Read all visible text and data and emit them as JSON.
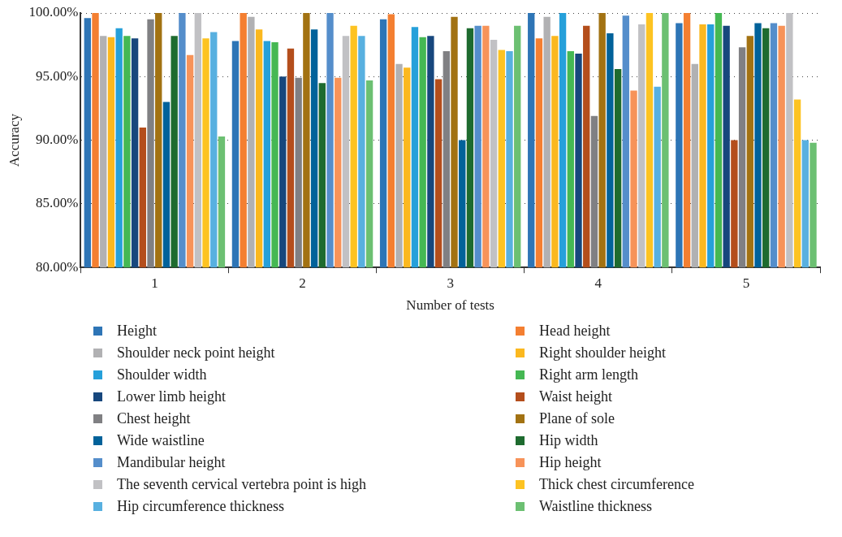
{
  "chart_data": {
    "type": "bar",
    "xlabel": "Number of tests",
    "ylabel": "Accuracy",
    "categories": [
      "1",
      "2",
      "3",
      "4",
      "5"
    ],
    "ylim": [
      80,
      100
    ],
    "yticks": [
      {
        "value": 80,
        "label": "80.00%"
      },
      {
        "value": 85,
        "label": "85.00%"
      },
      {
        "value": 90,
        "label": "90.00%"
      },
      {
        "value": 95,
        "label": "95.00%"
      },
      {
        "value": 100,
        "label": "100.00%"
      }
    ],
    "grid": "y",
    "legend": "bottom",
    "series": [
      {
        "name": "Height",
        "color": "#2e75b6",
        "values": [
          99.6,
          97.8,
          99.5,
          100,
          99.2
        ]
      },
      {
        "name": "Head height",
        "color": "#f47f31",
        "values": [
          100,
          100,
          99.9,
          98.0,
          100
        ]
      },
      {
        "name": "Shoulder neck point height",
        "color": "#b1b1b3",
        "values": [
          98.2,
          99.7,
          96.0,
          99.7,
          96.0
        ]
      },
      {
        "name": "Right shoulder height",
        "color": "#fbb81f",
        "values": [
          98.1,
          98.7,
          95.7,
          98.2,
          99.1
        ]
      },
      {
        "name": "Shoulder width",
        "color": "#26a0da",
        "values": [
          98.8,
          97.8,
          98.9,
          100,
          99.1
        ]
      },
      {
        "name": "Right arm length",
        "color": "#45b853",
        "values": [
          98.2,
          97.7,
          98.1,
          97.0,
          100
        ]
      },
      {
        "name": "Lower limb height",
        "color": "#17477d",
        "values": [
          98.0,
          95.0,
          98.2,
          96.8,
          99.0
        ]
      },
      {
        "name": "Waist height",
        "color": "#b44e1c",
        "values": [
          91.0,
          97.2,
          94.8,
          99.0,
          90.0
        ]
      },
      {
        "name": "Chest height",
        "color": "#808083",
        "values": [
          99.5,
          94.9,
          97.0,
          91.9,
          97.3
        ]
      },
      {
        "name": "Plane of sole",
        "color": "#a27212",
        "values": [
          100,
          100,
          99.7,
          100,
          98.2
        ]
      },
      {
        "name": "Wide waistline",
        "color": "#02629a",
        "values": [
          93.0,
          98.7,
          90.0,
          98.4,
          99.2
        ]
      },
      {
        "name": "Hip width",
        "color": "#1e6b2f",
        "values": [
          98.2,
          94.5,
          98.8,
          95.6,
          98.8
        ]
      },
      {
        "name": "Mandibular height",
        "color": "#558ecb",
        "values": [
          100,
          100,
          99.0,
          99.8,
          99.2
        ]
      },
      {
        "name": "Hip height",
        "color": "#f79359",
        "values": [
          96.7,
          94.9,
          99.0,
          93.9,
          99.0
        ]
      },
      {
        "name": "The seventh cervical vertebra point is high",
        "color": "#c1c1c4",
        "values": [
          100,
          98.2,
          97.9,
          99.1,
          100
        ]
      },
      {
        "name": "Thick chest circumference",
        "color": "#fdc322",
        "values": [
          98.0,
          99.0,
          97.1,
          100,
          93.2
        ]
      },
      {
        "name": "Hip circumference thickness",
        "color": "#58b0e0",
        "values": [
          98.5,
          98.2,
          97.0,
          94.2,
          90.0
        ]
      },
      {
        "name": "Waistline thickness",
        "color": "#6cc072",
        "values": [
          90.3,
          94.7,
          99.0,
          100,
          89.8
        ]
      }
    ]
  }
}
